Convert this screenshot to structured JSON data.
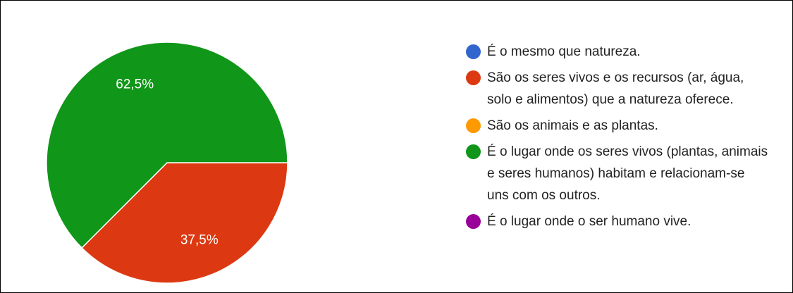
{
  "chart_data": {
    "type": "pie",
    "categories": [
      "É o mesmo que natureza.",
      "São os seres vivos e os recursos (ar, água, solo e alimentos) que a natureza oferece.",
      "São os animais e as plantas.",
      "É o lugar onde os seres vivos (plantas, animais e seres humanos) habitam e relacionam-se uns com os outros.",
      "É o lugar onde o ser humano vive."
    ],
    "values": [
      0,
      37.5,
      0,
      62.5,
      0
    ],
    "value_labels": [
      null,
      "37,5%",
      null,
      "62,5%",
      null
    ],
    "colors": [
      "#3366cc",
      "#dc3912",
      "#ff9900",
      "#109618",
      "#990099"
    ]
  }
}
